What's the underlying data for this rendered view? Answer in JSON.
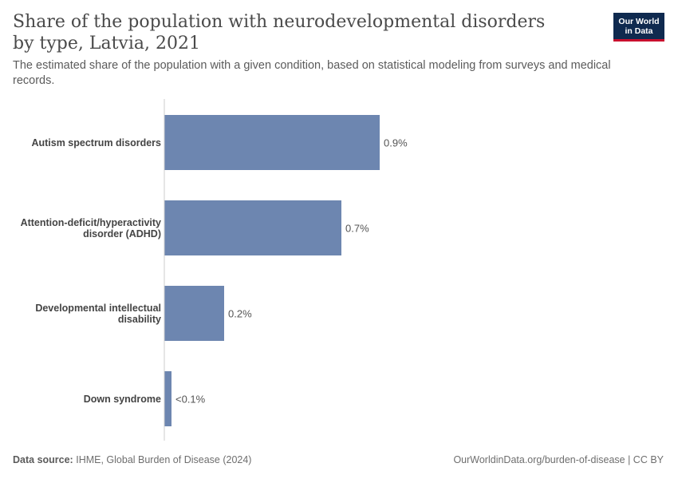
{
  "header": {
    "title": "Share of the population with neurodevelopmental disorders by type, Latvia, 2021",
    "subtitle": "The estimated share of the population with a given condition, based on statistical modeling from surveys and medical records.",
    "logo_line1": "Our World",
    "logo_line2": "in Data"
  },
  "footer": {
    "source_label": "Data source:",
    "source_text": "IHME, Global Burden of Disease (2024)",
    "link_text": "OurWorldinData.org/burden-of-disease | CC BY"
  },
  "colors": {
    "bar": "#6d86b0",
    "axis": "#cccccc",
    "label": "#444444",
    "value": "#555555"
  },
  "chart_data": {
    "type": "bar",
    "orientation": "horizontal",
    "categories": [
      [
        "Autism spectrum disorders"
      ],
      [
        "Attention-deficit/hyperactivity",
        "disorder (ADHD)"
      ],
      [
        "Developmental intellectual",
        "disability"
      ],
      [
        "Down syndrome"
      ]
    ],
    "values": [
      0.9,
      0.74,
      0.25,
      0.03
    ],
    "value_labels": [
      "0.9%",
      "0.7%",
      "0.2%",
      "<0.1%"
    ],
    "unit": "%",
    "xlim": [
      0,
      1.5
    ]
  }
}
